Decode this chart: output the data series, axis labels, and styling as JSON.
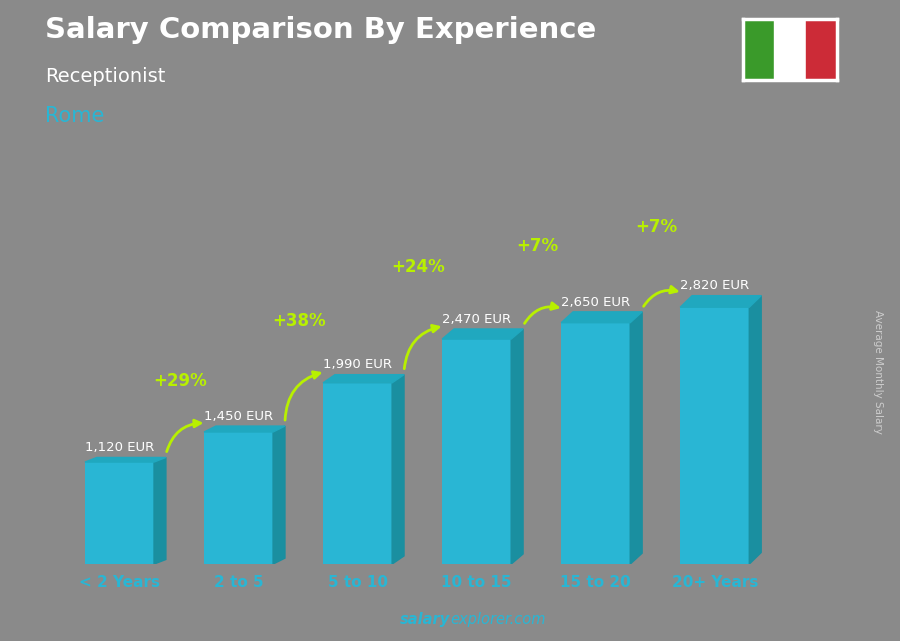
{
  "title": "Salary Comparison By Experience",
  "subtitle": "Receptionist",
  "city": "Rome",
  "categories": [
    "< 2 Years",
    "2 to 5",
    "5 to 10",
    "10 to 15",
    "15 to 20",
    "20+ Years"
  ],
  "cat_parts": [
    [
      "< 2 ",
      "Years"
    ],
    [
      "2 ",
      "to ",
      "5"
    ],
    [
      "5 ",
      "to ",
      "10"
    ],
    [
      "10 ",
      "to ",
      "15"
    ],
    [
      "15 ",
      "to ",
      "20"
    ],
    [
      "20+ ",
      "Years"
    ]
  ],
  "values": [
    1120,
    1450,
    1990,
    2470,
    2650,
    2820
  ],
  "labels": [
    "1,120 EUR",
    "1,450 EUR",
    "1,990 EUR",
    "2,470 EUR",
    "2,650 EUR",
    "2,820 EUR"
  ],
  "pct_changes": [
    "+29%",
    "+38%",
    "+24%",
    "+7%",
    "+7%"
  ],
  "bar_color_face": "#29b6d4",
  "bar_color_right": "#1a8fa0",
  "bar_color_top": "#20a8bf",
  "bg_color": "#8a8a8a",
  "title_color": "#ffffff",
  "subtitle_color": "#ffffff",
  "city_color": "#29b6d4",
  "label_color": "#ffffff",
  "pct_color": "#b8f000",
  "xticklabel_color": "#29b6d4",
  "footer_bold": "salary",
  "footer_normal": "explorer.com",
  "ylabel_text": "Average Monthly Salary",
  "ylim": [
    0,
    3800
  ],
  "flag_green": "#3a9a2a",
  "flag_white": "#ffffff",
  "flag_red": "#cc2b37"
}
